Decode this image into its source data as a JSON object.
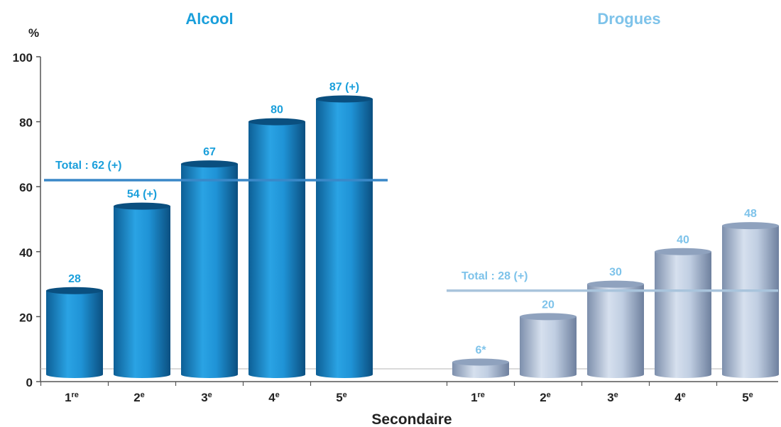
{
  "chart_data": {
    "type": "bar",
    "y_unit_label": "%",
    "xlabel": "Secondaire",
    "ylim": [
      0,
      100
    ],
    "y_ticks": [
      "0",
      "20",
      "40",
      "60",
      "80",
      "100"
    ],
    "grid": false,
    "groups": [
      {
        "title": "Alcool",
        "color": "#1a8fd0",
        "label_color": "#1a9fdb",
        "total_line": {
          "value": 62,
          "label": "Total : 62 (+)"
        },
        "bars": [
          {
            "num": "1",
            "sup": "re",
            "value": 28,
            "label": "28"
          },
          {
            "num": "2",
            "sup": "e",
            "value": 54,
            "label": "54 (+)"
          },
          {
            "num": "3",
            "sup": "e",
            "value": 67,
            "label": "67"
          },
          {
            "num": "4",
            "sup": "e",
            "value": 80,
            "label": "80"
          },
          {
            "num": "5",
            "sup": "e",
            "value": 87,
            "label": "87 (+)"
          }
        ]
      },
      {
        "title": "Drogues",
        "color": "#a9bcd6",
        "label_color": "#7ec3ea",
        "total_line": {
          "value": 28,
          "label": "Total : 28 (+)"
        },
        "bars": [
          {
            "num": "1",
            "sup": "re",
            "value": 6,
            "label": "6*"
          },
          {
            "num": "2",
            "sup": "e",
            "value": 20,
            "label": "20"
          },
          {
            "num": "3",
            "sup": "e",
            "value": 30,
            "label": "30"
          },
          {
            "num": "4",
            "sup": "e",
            "value": 40,
            "label": "40"
          },
          {
            "num": "5",
            "sup": "e",
            "value": 48,
            "label": "48"
          }
        ]
      }
    ]
  }
}
